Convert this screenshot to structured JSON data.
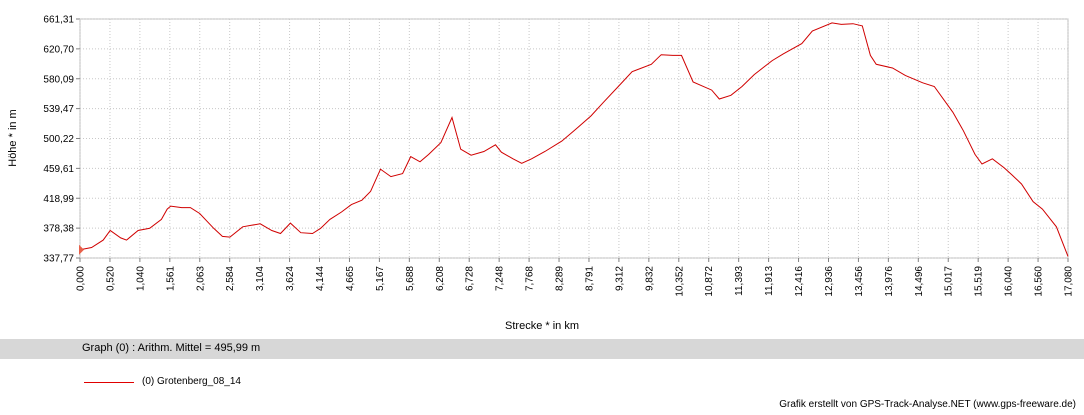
{
  "chart_data": {
    "type": "line",
    "xlabel": "Strecke *  in  km",
    "ylabel": "Höhe *  in  m",
    "xlim": [
      0,
      17.0
    ],
    "ylim": [
      337.77,
      661.31
    ],
    "x_ticks": [
      "0,000",
      "0,520",
      "1,040",
      "1,561",
      "2,063",
      "2,584",
      "3,104",
      "3,624",
      "4,144",
      "4,665",
      "5,167",
      "5,688",
      "6,208",
      "6,728",
      "7,248",
      "7,768",
      "8,289",
      "8,791",
      "9,312",
      "9,832",
      "10,352",
      "10,872",
      "11,393",
      "11,913",
      "12,416",
      "12,936",
      "13,456",
      "13,976",
      "14,496",
      "15,017",
      "15,519",
      "16,040",
      "16,560",
      "17,080"
    ],
    "y_ticks": [
      "661,31",
      "620,70",
      "580,09",
      "539,47",
      "500,22",
      "459,61",
      "418,99",
      "378,38",
      "337,77"
    ],
    "grid": true,
    "series": [
      {
        "name": "(0) Grotenberg_08_14",
        "color": "#d00000",
        "x": [
          0.0,
          0.2,
          0.4,
          0.52,
          0.7,
          0.8,
          1.0,
          1.2,
          1.4,
          1.5,
          1.56,
          1.75,
          1.9,
          2.06,
          2.3,
          2.45,
          2.58,
          2.8,
          2.95,
          3.1,
          3.3,
          3.45,
          3.62,
          3.8,
          4.0,
          4.14,
          4.3,
          4.5,
          4.67,
          4.85,
          5.0,
          5.17,
          5.35,
          5.55,
          5.69,
          5.85,
          6.0,
          6.21,
          6.4,
          6.55,
          6.73,
          6.95,
          7.15,
          7.25,
          7.45,
          7.6,
          7.77,
          8.0,
          8.29,
          8.5,
          8.79,
          9.0,
          9.31,
          9.5,
          9.83,
          10.0,
          10.2,
          10.35,
          10.55,
          10.87,
          11.0,
          11.2,
          11.39,
          11.6,
          11.91,
          12.1,
          12.42,
          12.6,
          12.94,
          13.1,
          13.3,
          13.46,
          13.6,
          13.7,
          13.98,
          14.2,
          14.5,
          14.7,
          15.02,
          15.2,
          15.4,
          15.52,
          15.7,
          15.9,
          16.04,
          16.2,
          16.4,
          16.56,
          16.8,
          17.0
        ],
        "y": [
          349,
          352,
          362,
          375,
          365,
          362,
          375,
          378,
          390,
          404,
          408,
          406,
          406,
          398,
          378,
          367,
          366,
          380,
          382,
          384,
          375,
          371,
          385,
          372,
          371,
          378,
          390,
          400,
          410,
          416,
          428,
          458,
          448,
          452,
          475,
          468,
          478,
          494,
          528,
          485,
          477,
          482,
          491,
          481,
          472,
          466,
          472,
          482,
          496,
          510,
          530,
          548,
          574,
          590,
          600,
          613,
          612,
          612,
          576,
          565,
          553,
          558,
          570,
          586,
          605,
          614,
          628,
          645,
          656,
          654,
          655,
          652,
          612,
          600,
          595,
          585,
          575,
          570,
          535,
          510,
          478,
          465,
          472,
          460,
          450,
          438,
          414,
          404,
          380,
          340
        ]
      }
    ]
  },
  "info": {
    "text": "Graph (0) :   Arithm. Mittel = 495,99 m"
  },
  "legend": {
    "label": "(0) Grotenberg_08_14"
  },
  "credit": "Grafik erstellt von GPS-Track-Analyse.NET (www.gps-freeware.de)"
}
